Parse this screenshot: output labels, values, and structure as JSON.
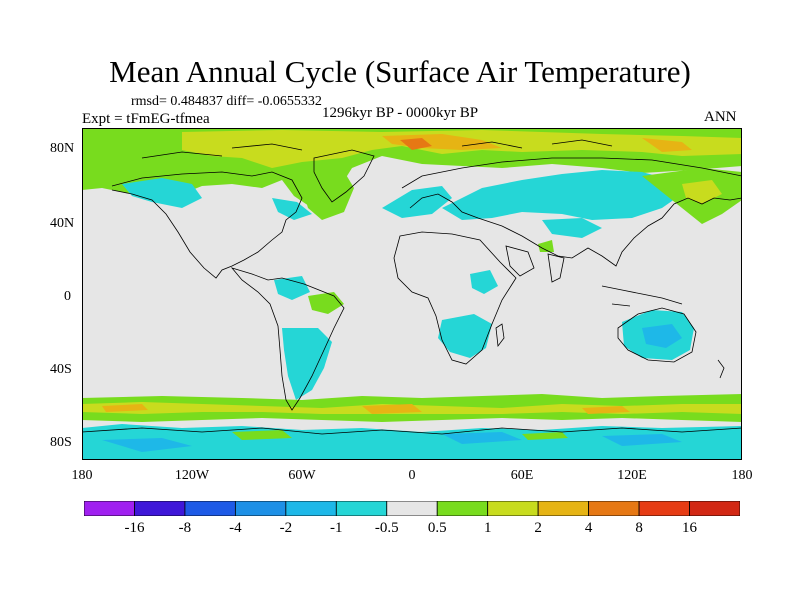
{
  "title": "Mean Annual Cycle (Surface Air Temperature)",
  "stats": "rmsd= 0.484837 diff= -0.0655332",
  "experiment": "Expt = tFmEG-tfmea",
  "period": "1296kyr BP - 0000kyr BP",
  "season": "ANN",
  "lat_ticks": [
    "80N",
    "40N",
    "0",
    "40S",
    "80S"
  ],
  "lon_ticks": [
    "180",
    "120W",
    "60W",
    "0",
    "60E",
    "120E",
    "180"
  ],
  "colorbar": {
    "labels": [
      "-16",
      "-8",
      "-4",
      "-2",
      "-1",
      "-0.5",
      "0.5",
      "1",
      "2",
      "4",
      "8",
      "16"
    ],
    "colors": [
      "#a020f0",
      "#3f17d8",
      "#1e5ae6",
      "#1e90e6",
      "#1eb8e8",
      "#25d6d6",
      "#e6e6e6",
      "#78dc1e",
      "#c8dc1e",
      "#e6b414",
      "#e67814",
      "#e63c14",
      "#d22814"
    ]
  },
  "map_colors": {
    "ocean": "#e6e6e6",
    "land_outline": "#000000",
    "neg_small": "#25d6d6",
    "neg_medium": "#1eb8e8",
    "pos_small": "#78dc1e",
    "pos_medium": "#c8dc1e",
    "pos_large": "#e6b414",
    "pos_xlarge": "#e67814"
  }
}
